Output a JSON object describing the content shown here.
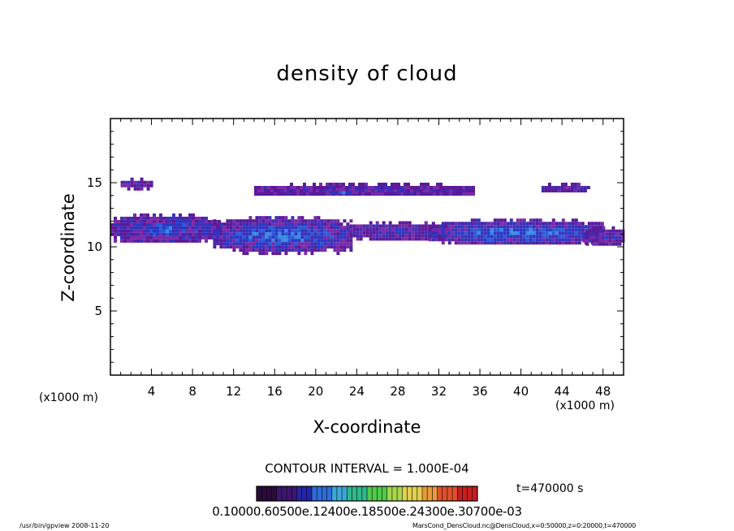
{
  "chart_data": {
    "type": "heatmap",
    "title": "density of cloud",
    "xlabel": "X-coordinate",
    "ylabel": "Z-coordinate",
    "x_unit_left": "(x1000 m)",
    "x_unit_right": "(x1000 m)",
    "xlim": [
      0,
      50
    ],
    "ylim": [
      0,
      20
    ],
    "x_ticks": [
      4,
      8,
      12,
      16,
      20,
      24,
      28,
      32,
      36,
      40,
      44,
      48
    ],
    "y_ticks": [
      5,
      10,
      15
    ],
    "contour_interval": "CONTOUR INTERVAL = 1.000E-04",
    "time": "t=470000 s",
    "colorbar_labels": "0.10000.60500e.12400e.18500e.24300e.30700e-03",
    "colorbar_colors": [
      "#2a0a3a",
      "#3c1670",
      "#2424a8",
      "#2e6cd8",
      "#3aa8d8",
      "#2fb88a",
      "#4ecb4a",
      "#a6d64a",
      "#e0d050",
      "#e89a3a",
      "#e0502a",
      "#c81e1e"
    ],
    "cloud_bands": [
      {
        "x": [
          14,
          35.5
        ],
        "z": [
          14.0,
          15.0
        ],
        "level": 0.2
      },
      {
        "x": [
          21,
          24
        ],
        "z": [
          14.1,
          14.6
        ],
        "level": 0.4
      },
      {
        "x": [
          0,
          10.5
        ],
        "z": [
          10.4,
          12.6
        ],
        "level": 0.35
      },
      {
        "x": [
          10,
          23.5
        ],
        "z": [
          9.6,
          12.4
        ],
        "level": 0.45
      },
      {
        "x": [
          23,
          33
        ],
        "z": [
          10.6,
          12.0
        ],
        "level": 0.2
      },
      {
        "x": [
          31,
          48
        ],
        "z": [
          10.2,
          12.2
        ],
        "level": 0.45
      },
      {
        "x": [
          46,
          50
        ],
        "z": [
          10.2,
          11.6
        ],
        "level": 0.2
      },
      {
        "x": [
          1,
          4
        ],
        "z": [
          14.6,
          15.4
        ],
        "level": 0.15
      },
      {
        "x": [
          42,
          46.5
        ],
        "z": [
          14.4,
          15.0
        ],
        "level": 0.15
      }
    ]
  },
  "footer": {
    "left": "/usr/bin/gpview   2008-11-20",
    "right": "MarsCond_DensCloud.nc@DensCloud,x=0:50000,z=0:20000,t=470000"
  }
}
